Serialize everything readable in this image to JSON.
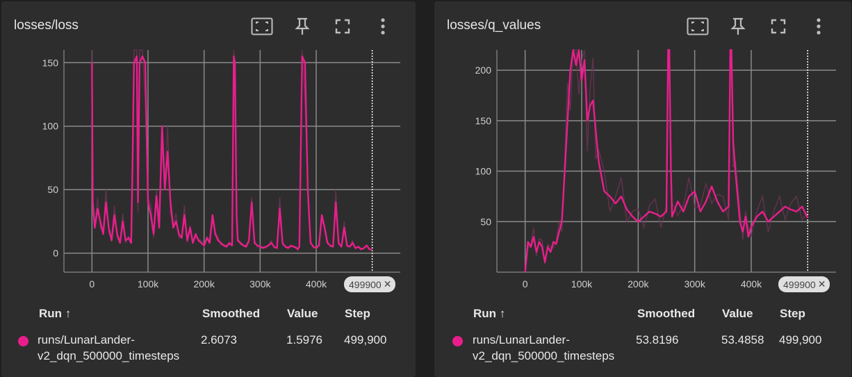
{
  "colors": {
    "series": "#e91e8c",
    "raw": "#6e3355",
    "grid": "#8a8a8a",
    "card": "#2d2d2d"
  },
  "toolbar_icons": [
    "fit-domain-icon",
    "pin-icon",
    "fullscreen-icon",
    "more-vert-icon"
  ],
  "legend_headers": {
    "run": "Run ↑",
    "smoothed": "Smoothed",
    "value": "Value",
    "step": "Step"
  },
  "chart_data": [
    {
      "type": "line",
      "title": "losses/loss",
      "xticks": [
        "0",
        "100k",
        "200k",
        "300k",
        "400k"
      ],
      "yticks": [
        "0",
        "50",
        "100",
        "150"
      ],
      "xlim": [
        -50000,
        550000
      ],
      "ylim": [
        -15,
        160
      ],
      "step_marker": "499900",
      "series": [
        {
          "name": "runs/LunarLander-v2_dqn_500000_timesteps",
          "smoothed": "2.6073",
          "value": "1.5976",
          "step": "499,900",
          "x": [
            0,
            1500,
            5000,
            10000,
            15000,
            20000,
            25000,
            30000,
            35000,
            40000,
            45000,
            50000,
            55000,
            60000,
            65000,
            70000,
            72000,
            75000,
            80000,
            82000,
            85000,
            90000,
            95000,
            100000,
            105000,
            110000,
            115000,
            120000,
            125000,
            130000,
            135000,
            140000,
            145000,
            150000,
            155000,
            160000,
            165000,
            170000,
            175000,
            180000,
            185000,
            190000,
            195000,
            200000,
            205000,
            210000,
            215000,
            220000,
            225000,
            230000,
            235000,
            240000,
            245000,
            250000,
            253000,
            255000,
            258000,
            260000,
            265000,
            270000,
            275000,
            280000,
            285000,
            290000,
            295000,
            300000,
            305000,
            310000,
            315000,
            320000,
            325000,
            330000,
            335000,
            340000,
            345000,
            350000,
            355000,
            360000,
            365000,
            367000,
            370000,
            375000,
            380000,
            385000,
            390000,
            395000,
            400000,
            405000,
            410000,
            415000,
            420000,
            425000,
            430000,
            435000,
            440000,
            445000,
            450000,
            455000,
            460000,
            465000,
            470000,
            475000,
            480000,
            485000,
            490000,
            495000,
            499900
          ],
          "y": [
            150,
            40,
            20,
            35,
            25,
            15,
            40,
            20,
            10,
            30,
            15,
            8,
            25,
            10,
            12,
            8,
            60,
            150,
            155,
            40,
            150,
            155,
            150,
            40,
            30,
            15,
            45,
            20,
            100,
            50,
            80,
            40,
            20,
            25,
            15,
            12,
            30,
            10,
            20,
            8,
            15,
            10,
            8,
            6,
            12,
            8,
            30,
            15,
            10,
            8,
            6,
            5,
            8,
            6,
            155,
            150,
            30,
            10,
            8,
            6,
            5,
            10,
            40,
            8,
            6,
            5,
            4,
            5,
            6,
            8,
            5,
            4,
            35,
            8,
            5,
            4,
            6,
            5,
            4,
            3,
            5,
            155,
            150,
            50,
            8,
            5,
            4,
            6,
            30,
            20,
            8,
            6,
            5,
            40,
            8,
            5,
            20,
            6,
            5,
            8,
            4,
            5,
            3,
            4,
            6,
            3,
            2.6
          ]
        }
      ]
    },
    {
      "type": "line",
      "title": "losses/q_values",
      "xticks": [
        "0",
        "100k",
        "200k",
        "300k",
        "400k"
      ],
      "yticks": [
        "50",
        "100",
        "150",
        "200"
      ],
      "xlim": [
        -50000,
        550000
      ],
      "ylim": [
        0,
        220
      ],
      "step_marker": "499900",
      "series": [
        {
          "name": "runs/LunarLander-v2_dqn_500000_timesteps",
          "smoothed": "53.8196",
          "value": "53.4858",
          "step": "499,900",
          "x": [
            0,
            5000,
            10000,
            15000,
            20000,
            25000,
            30000,
            35000,
            40000,
            45000,
            50000,
            55000,
            60000,
            65000,
            70000,
            75000,
            80000,
            85000,
            90000,
            95000,
            100000,
            105000,
            110000,
            115000,
            120000,
            125000,
            130000,
            140000,
            150000,
            160000,
            170000,
            180000,
            190000,
            200000,
            210000,
            220000,
            230000,
            240000,
            250000,
            253000,
            255000,
            258000,
            260000,
            270000,
            280000,
            290000,
            300000,
            310000,
            320000,
            330000,
            340000,
            350000,
            360000,
            363000,
            365000,
            368000,
            372000,
            380000,
            385000,
            390000,
            395000,
            400000,
            410000,
            420000,
            430000,
            440000,
            450000,
            460000,
            470000,
            480000,
            490000,
            499900
          ],
          "y": [
            0,
            30,
            25,
            35,
            20,
            30,
            25,
            10,
            25,
            20,
            30,
            28,
            40,
            50,
            100,
            150,
            200,
            220,
            205,
            220,
            190,
            210,
            150,
            165,
            170,
            140,
            110,
            80,
            75,
            68,
            75,
            62,
            55,
            50,
            55,
            60,
            58,
            55,
            60,
            230,
            228,
            100,
            55,
            70,
            60,
            75,
            80,
            60,
            70,
            85,
            70,
            60,
            65,
            230,
            228,
            130,
            100,
            50,
            40,
            55,
            35,
            45,
            55,
            60,
            50,
            55,
            60,
            65,
            62,
            60,
            65,
            53.8
          ]
        }
      ]
    }
  ]
}
